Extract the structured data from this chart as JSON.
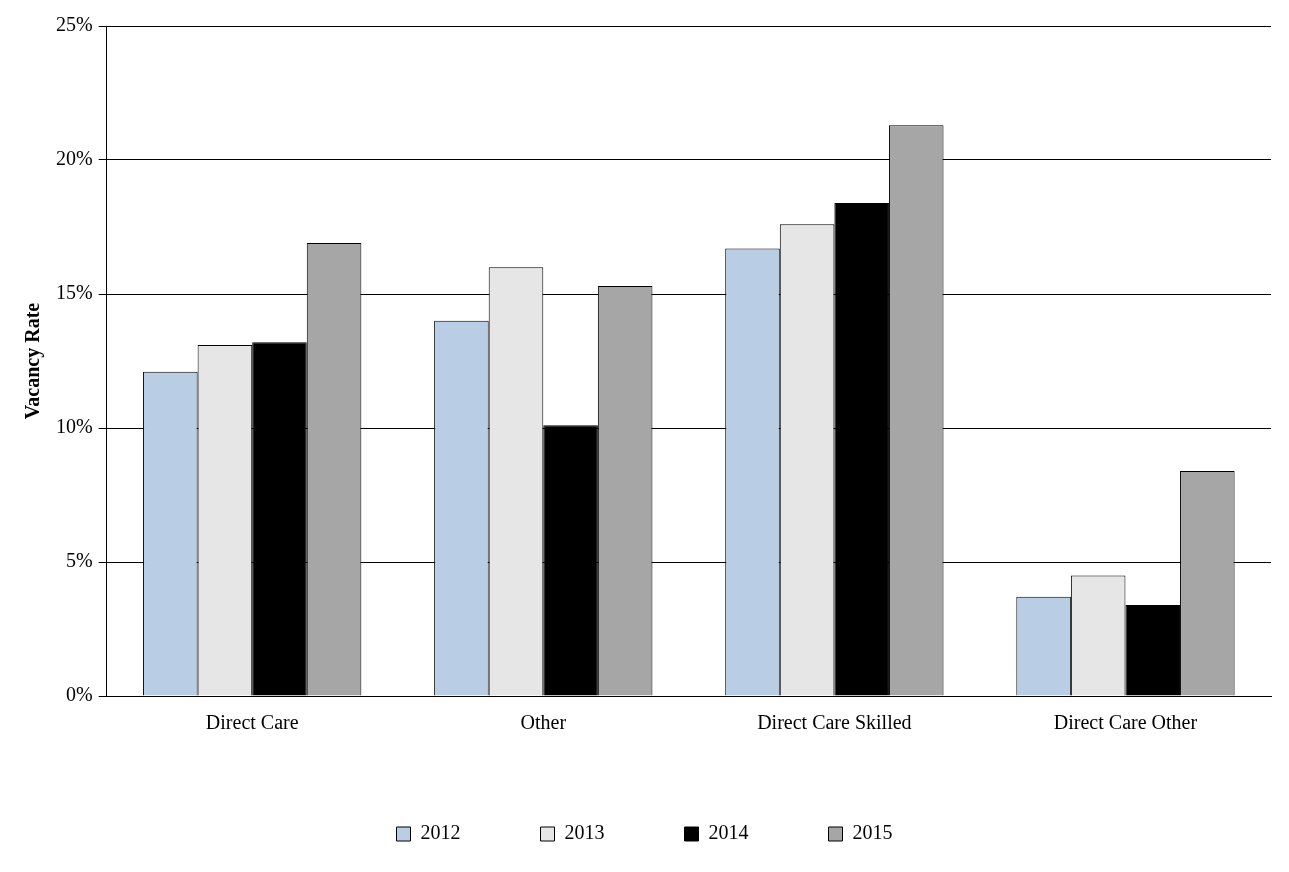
{
  "chart_data": {
    "type": "bar",
    "ylabel": "Vacancy Rate",
    "categories": [
      "Direct Care",
      "Other",
      "Direct Care Skilled",
      "Direct Care Other"
    ],
    "series": [
      {
        "name": "2012",
        "color": "#b9cde5",
        "values": [
          12.1,
          14.0,
          16.7,
          3.7
        ]
      },
      {
        "name": "2013",
        "color": "#e6e6e6",
        "values": [
          13.1,
          16.0,
          17.6,
          4.5
        ]
      },
      {
        "name": "2014",
        "color": "#000000",
        "values": [
          13.2,
          10.1,
          18.4,
          3.4
        ]
      },
      {
        "name": "2015",
        "color": "#a6a6a6",
        "values": [
          16.9,
          15.3,
          21.3,
          8.4
        ]
      }
    ],
    "ylim": [
      0,
      25
    ],
    "yticks": [
      {
        "value": 0,
        "label": "0%"
      },
      {
        "value": 5,
        "label": "5%"
      },
      {
        "value": 10,
        "label": "10%"
      },
      {
        "value": 15,
        "label": "15%"
      },
      {
        "value": 20,
        "label": "20%"
      },
      {
        "value": 25,
        "label": "25%"
      }
    ],
    "grid": "y",
    "legend": "bottom"
  }
}
